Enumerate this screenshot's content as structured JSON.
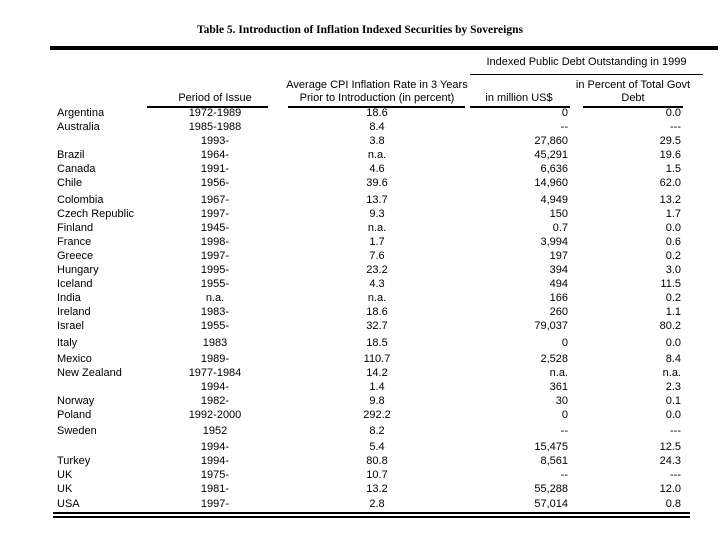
{
  "title": "Table 5. Introduction of Inflation Indexed Securities by Sovereigns",
  "table": {
    "group_header": "Indexed Public Debt Outstanding in 1999",
    "headers": {
      "period": "Period of Issue",
      "cpi_line1": "Average CPI Inflation Rate in 3 Years",
      "cpi_line2": "Prior to Introduction (in percent)",
      "musd": "in million US$",
      "pct_line1": "in Percent of Total Govt",
      "pct_line2": "Debt"
    },
    "rows": [
      {
        "country": "Argentina",
        "period": "1972-1989",
        "cpi": "18.6",
        "musd": "0",
        "pct": "0.0",
        "gap": false
      },
      {
        "country": "Australia",
        "period": "1985-1988",
        "cpi": "8.4",
        "musd": "--",
        "pct": "---",
        "gap": false
      },
      {
        "country": "",
        "period": "1993-",
        "cpi": "3.8",
        "musd": "27,860",
        "pct": "29.5",
        "gap": false
      },
      {
        "country": "Brazil",
        "period": "1964-",
        "cpi": "n.a.",
        "musd": "45,291",
        "pct": "19.6",
        "gap": false
      },
      {
        "country": "Canada",
        "period": "1991-",
        "cpi": "4.6",
        "musd": "6,636",
        "pct": "1.5",
        "gap": false
      },
      {
        "country": "Chile",
        "period": "1956-",
        "cpi": "39.6",
        "musd": "14,960",
        "pct": "62.0",
        "gap": false
      },
      {
        "country": "Colombia",
        "period": "1967-",
        "cpi": "13.7",
        "musd": "4,949",
        "pct": "13.2",
        "gap": true
      },
      {
        "country": "Czech Republic",
        "period": "1997-",
        "cpi": "9.3",
        "musd": "150",
        "pct": "1.7",
        "gap": false
      },
      {
        "country": "Finland",
        "period": "1945-",
        "cpi": "n.a.",
        "musd": "0.7",
        "pct": "0.0",
        "gap": false
      },
      {
        "country": "France",
        "period": "1998-",
        "cpi": "1.7",
        "musd": "3,994",
        "pct": "0.6",
        "gap": false
      },
      {
        "country": "Greece",
        "period": "1997-",
        "cpi": "7.6",
        "musd": "197",
        "pct": "0.2",
        "gap": false
      },
      {
        "country": "Hungary",
        "period": "1995-",
        "cpi": "23.2",
        "musd": "394",
        "pct": "3.0",
        "gap": false
      },
      {
        "country": "Iceland",
        "period": "1955-",
        "cpi": "4.3",
        "musd": "494",
        "pct": "11.5",
        "gap": false
      },
      {
        "country": "India",
        "period": "n.a.",
        "cpi": "n.a.",
        "musd": "166",
        "pct": "0.2",
        "gap": false
      },
      {
        "country": "Ireland",
        "period": "1983-",
        "cpi": "18.6",
        "musd": "260",
        "pct": "1.1",
        "gap": false
      },
      {
        "country": "Israel",
        "period": "1955-",
        "cpi": "32.7",
        "musd": "79,037",
        "pct": "80.2",
        "gap": false
      },
      {
        "country": "Italy",
        "period": "1983",
        "cpi": "18.5",
        "musd": "0",
        "pct": "0.0",
        "gap": true
      },
      {
        "country": "Mexico",
        "period": "1989-",
        "cpi": "110.7",
        "musd": "2,528",
        "pct": "8.4",
        "gap": true
      },
      {
        "country": "New Zealand",
        "period": "1977-1984",
        "cpi": "14.2",
        "musd": "n.a.",
        "pct": "n.a.",
        "gap": false
      },
      {
        "country": "",
        "period": "1994-",
        "cpi": "1.4",
        "musd": "361",
        "pct": "2.3",
        "gap": false
      },
      {
        "country": "Norway",
        "period": "1982-",
        "cpi": "9.8",
        "musd": "30",
        "pct": "0.1",
        "gap": false
      },
      {
        "country": "Poland",
        "period": "1992-2000",
        "cpi": "292.2",
        "musd": "0",
        "pct": "0.0",
        "gap": false
      },
      {
        "country": "Sweden",
        "period": "1952",
        "cpi": "8.2",
        "musd": "--",
        "pct": "---",
        "gap": true
      },
      {
        "country": "",
        "period": "1994-",
        "cpi": "5.4",
        "musd": "15,475",
        "pct": "12.5",
        "gap": true
      },
      {
        "country": "Turkey",
        "period": "1994-",
        "cpi": "80.8",
        "musd": "8,561",
        "pct": "24.3",
        "gap": false
      },
      {
        "country": "UK",
        "period": "1975-",
        "cpi": "10.7",
        "musd": "--",
        "pct": "---",
        "gap": false
      },
      {
        "country": "UK",
        "period": "1981-",
        "cpi": "13.2",
        "musd": "55,288",
        "pct": "12.0",
        "gap": false
      },
      {
        "country": "USA",
        "period": "1997-",
        "cpi": "2.8",
        "musd": "57,014",
        "pct": "0.8",
        "gap": false
      }
    ]
  }
}
